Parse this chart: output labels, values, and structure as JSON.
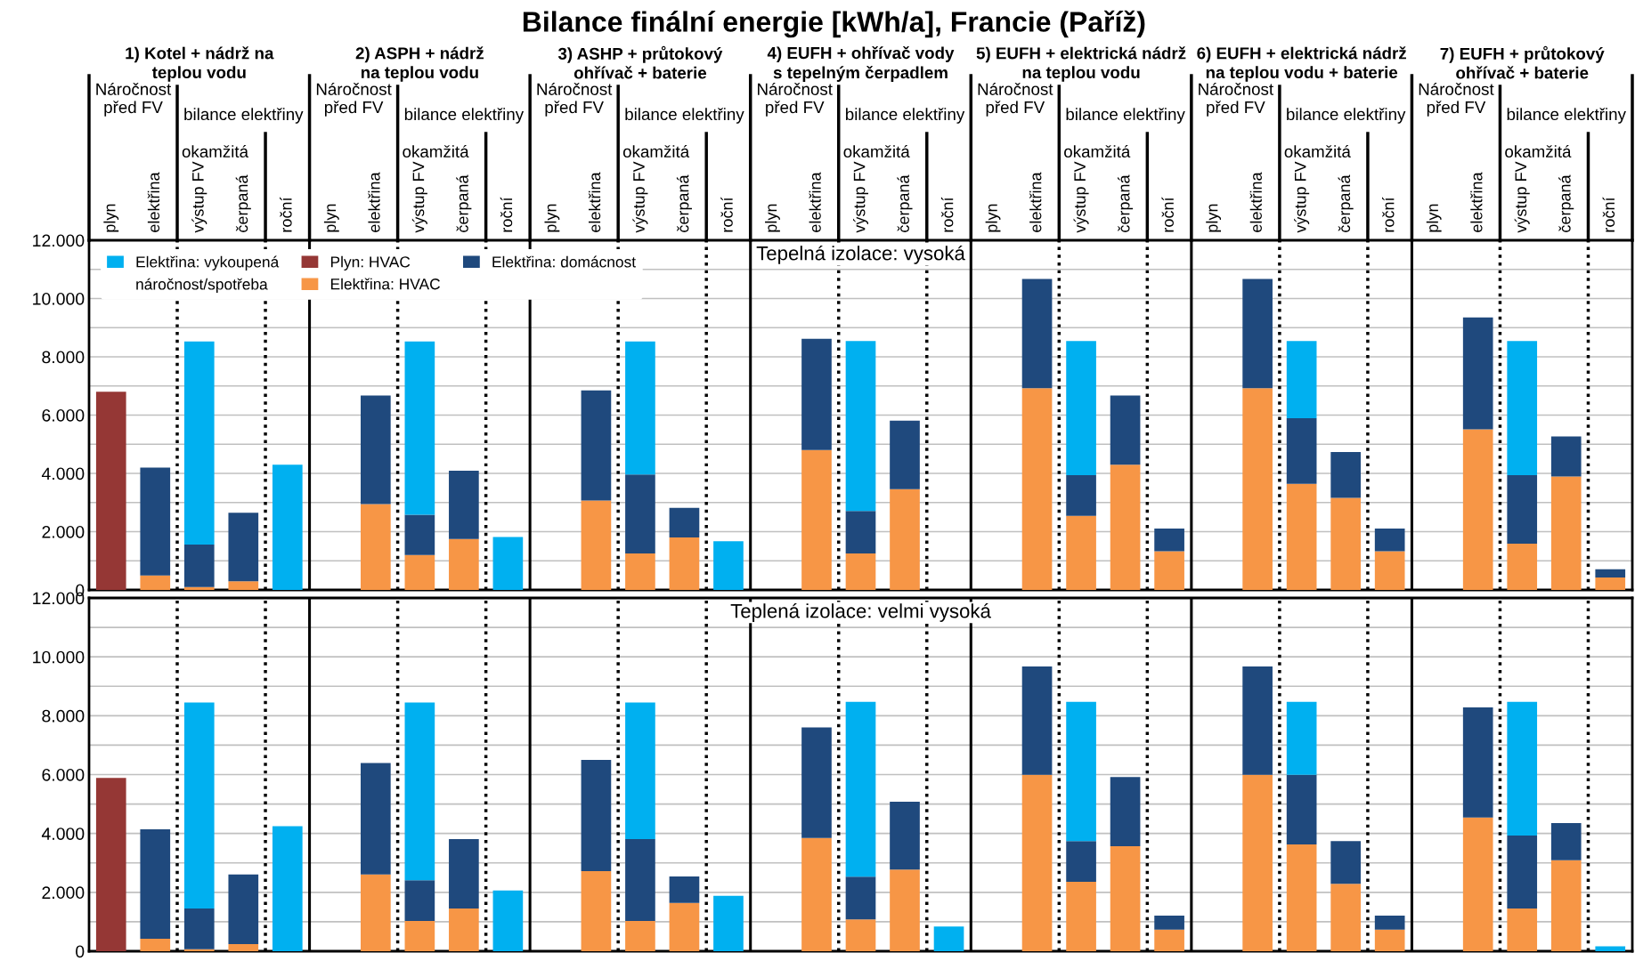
{
  "chart_data": [
    {
      "type": "bar",
      "stacked": true,
      "title": "Bilance finální energie [kWh/a], Francie (Paříž)",
      "subtitle": "Tepelná izolace: vysoká",
      "categories": [
        "plyn",
        "elektřina",
        "výstup FV",
        "čerpaná",
        "roční",
        "plyn",
        "elektřina",
        "výstup FV",
        "čerpaná",
        "roční",
        "plyn",
        "elektřina",
        "výstup FV",
        "čerpaná",
        "roční",
        "plyn",
        "elektřina",
        "výstup FV",
        "čerpaná",
        "roční",
        "plyn",
        "elektřina",
        "výstup FV",
        "čerpaná",
        "roční",
        "plyn",
        "elektřina",
        "výstup FV",
        "čerpaná",
        "roční",
        "plyn",
        "elektřina",
        "výstup FV",
        "čerpaná",
        "roční"
      ],
      "legend_title": "náročnost/spotřeba",
      "legend": "top left",
      "grid": "y",
      "ylim": [
        0,
        12000
      ],
      "yticks": [
        {
          "value": 0,
          "label": "0"
        },
        {
          "value": 1000,
          "label": null
        },
        {
          "value": 2000,
          "label": "2.000"
        },
        {
          "value": 3000,
          "label": null
        },
        {
          "value": 4000,
          "label": "4.000"
        },
        {
          "value": 5000,
          "label": null
        },
        {
          "value": 6000,
          "label": "6.000"
        },
        {
          "value": 7000,
          "label": null
        },
        {
          "value": 8000,
          "label": "8.000"
        },
        {
          "value": 9000,
          "label": null
        },
        {
          "value": 10000,
          "label": "10.000"
        },
        {
          "value": 11000,
          "label": null
        },
        {
          "value": 12000,
          "label": "12.000"
        }
      ],
      "annotations": [
        "1) Kotel + nádrž na\nteplou vodu",
        "Náročnost\npřed FV",
        "bilance elektřiny",
        "okamžitá",
        "2) ASPH + nádrž\nna teplou vodu",
        "Náročnost\npřed FV",
        "bilance elektřiny",
        "okamžitá",
        "3) ASHP + průtokový\nohřívač + baterie",
        "Náročnost\npřed FV",
        "bilance elektřiny",
        "okamžitá",
        "4) EUFH + ohřívač vody\ns tepelným čerpadlem",
        "Náročnost\npřed FV",
        "bilance elektřiny",
        "okamžitá",
        "5) EUFH + elektrická nádrž\nna teplou vodu",
        "Náročnost\npřed FV",
        "bilance elektřiny",
        "okamžitá",
        "6) EUFH + elektrická nádrž\nna teplou vodu + baterie",
        "Náročnost\npřed FV",
        "bilance elektřiny",
        "okamžitá",
        "7) EUFH + průtokový\nohřívač + baterie",
        "Náročnost\npřed FV",
        "bilance elektřiny",
        "okamžitá"
      ],
      "series": [
        {
          "name": "Plyn: HVAC",
          "color": "#953735",
          "values": [
            6800,
            null,
            null,
            null,
            null,
            null,
            null,
            null,
            null,
            null,
            null,
            null,
            null,
            null,
            null,
            null,
            null,
            null,
            null,
            null,
            null,
            null,
            null,
            null,
            null,
            null,
            null,
            null,
            null,
            null,
            null,
            null,
            null,
            null,
            null
          ]
        },
        {
          "name": "Elektřina: HVAC",
          "color": "#f79646",
          "values": [
            null,
            500,
            100,
            300,
            null,
            null,
            2950,
            1200,
            1750,
            null,
            null,
            3070,
            1250,
            1800,
            null,
            null,
            4800,
            1250,
            3460,
            null,
            null,
            6920,
            2540,
            4300,
            1330,
            null,
            6920,
            3640,
            3160,
            1330,
            null,
            5510,
            1590,
            3890,
            430
          ]
        },
        {
          "name": "Elektřina: domácnost",
          "color": "#1f497d",
          "values": [
            null,
            3700,
            1460,
            2350,
            null,
            null,
            3720,
            1380,
            2340,
            null,
            null,
            3780,
            2710,
            1020,
            null,
            null,
            3820,
            1460,
            2350,
            null,
            null,
            3750,
            1400,
            2370,
            780,
            null,
            3750,
            2250,
            1570,
            780,
            null,
            3840,
            2350,
            1380,
            280
          ]
        },
        {
          "name": "Elektřina: vykoupená",
          "color": "#00b0f0",
          "values": [
            null,
            null,
            6970,
            null,
            4300,
            null,
            null,
            5950,
            null,
            1820,
            null,
            null,
            4570,
            null,
            1670,
            null,
            null,
            5830,
            null,
            null,
            null,
            null,
            4600,
            null,
            null,
            null,
            null,
            2650,
            null,
            null,
            null,
            null,
            4600,
            null,
            null
          ]
        }
      ]
    },
    {
      "type": "bar",
      "stacked": true,
      "subtitle": "Teplená izolace: velmi vysoká",
      "tick_labels": "y",
      "grid": "y",
      "categories": [
        null,
        null,
        null,
        null,
        null,
        null,
        null,
        null,
        null,
        null,
        null,
        null,
        null,
        null,
        null,
        null,
        null,
        null,
        null,
        null,
        null,
        null,
        null,
        null,
        null,
        null,
        null,
        null,
        null,
        null,
        null,
        null,
        null,
        null,
        null
      ],
      "ylim": [
        0,
        12000
      ],
      "yticks": [
        {
          "value": 0,
          "label": "0"
        },
        {
          "value": 1000,
          "label": null
        },
        {
          "value": 2000,
          "label": "2.000"
        },
        {
          "value": 3000,
          "label": null
        },
        {
          "value": 4000,
          "label": "4.000"
        },
        {
          "value": 5000,
          "label": null
        },
        {
          "value": 6000,
          "label": "6.000"
        },
        {
          "value": 7000,
          "label": null
        },
        {
          "value": 8000,
          "label": "8.000"
        },
        {
          "value": 9000,
          "label": null
        },
        {
          "value": 10000,
          "label": "10.000"
        },
        {
          "value": 11000,
          "label": null
        },
        {
          "value": 12000,
          "label": "12.000"
        }
      ],
      "series": [
        {
          "color": "#953735",
          "values": [
            5890,
            null,
            null,
            null,
            null,
            null,
            null,
            null,
            null,
            null,
            null,
            null,
            null,
            null,
            null,
            null,
            null,
            null,
            null,
            null,
            null,
            null,
            null,
            null,
            null,
            null,
            null,
            null,
            null,
            null,
            null,
            null,
            null,
            null,
            null
          ]
        },
        {
          "color": "#f79646",
          "values": [
            null,
            420,
            70,
            240,
            null,
            null,
            2610,
            1030,
            1450,
            null,
            null,
            2720,
            1030,
            1640,
            null,
            null,
            3850,
            1080,
            2770,
            null,
            null,
            5990,
            2360,
            3570,
            730,
            null,
            5990,
            3630,
            2290,
            730,
            null,
            4540,
            1450,
            3090,
            null
          ]
        },
        {
          "color": "#1f497d",
          "values": [
            null,
            3720,
            1380,
            2370,
            null,
            null,
            3780,
            1380,
            2360,
            null,
            null,
            3780,
            2780,
            900,
            null,
            null,
            3750,
            1450,
            2310,
            null,
            null,
            3680,
            1380,
            2350,
            480,
            null,
            3680,
            2360,
            1450,
            480,
            null,
            3740,
            2480,
            1260,
            null
          ]
        },
        {
          "color": "#00b0f0",
          "values": [
            null,
            null,
            7000,
            null,
            4250,
            null,
            null,
            6040,
            null,
            2060,
            null,
            null,
            4640,
            null,
            1880,
            null,
            null,
            5940,
            null,
            840,
            null,
            null,
            4730,
            null,
            null,
            null,
            null,
            2480,
            null,
            null,
            null,
            null,
            4540,
            null,
            170
          ]
        }
      ]
    }
  ]
}
